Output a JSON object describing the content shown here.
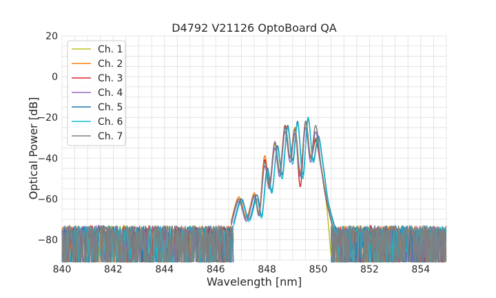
{
  "chart_data": {
    "type": "line",
    "title": "D4792 V21126 OptoBoard QA",
    "xlabel": "Wavelength [nm]",
    "ylabel": "Optical Power [dB]",
    "xlim": [
      840,
      855
    ],
    "ylim": [
      -90,
      20
    ],
    "xticks": [
      840,
      842,
      844,
      846,
      848,
      850,
      852,
      854
    ],
    "yticks": [
      20,
      0,
      -20,
      -40,
      -60,
      -80
    ],
    "xtick_labels": [
      "840",
      "842",
      "844",
      "846",
      "848",
      "850",
      "852",
      "854"
    ],
    "ytick_labels": [
      "20",
      "0",
      "−20",
      "−40",
      "−60",
      "−80"
    ],
    "grid": true,
    "legend_position": "top-left",
    "noise_floor_db": -75,
    "series": [
      {
        "name": "Ch. 1",
        "color": "#bcbd22",
        "x": [
          846.6,
          846.9,
          847.2,
          847.5,
          847.7,
          847.9,
          848.1,
          848.3,
          848.5,
          848.7,
          848.9,
          849.1,
          849.3,
          849.5,
          849.7,
          849.9,
          850.1,
          850.3,
          850.5
        ],
        "y": [
          -72,
          -60,
          -70,
          -58,
          -68,
          -42,
          -55,
          -33,
          -48,
          -25,
          -40,
          -26,
          -48,
          -23,
          -40,
          -32,
          -44,
          -60,
          -88
        ]
      },
      {
        "name": "Ch. 2",
        "color": "#ff7f0e",
        "x": [
          846.6,
          846.9,
          847.2,
          847.5,
          847.7,
          847.9,
          848.1,
          848.3,
          848.5,
          848.7,
          848.9,
          849.1,
          849.3,
          849.5,
          849.7,
          849.9,
          850.1,
          850.3,
          850.6
        ],
        "y": [
          -71,
          -59,
          -69,
          -57,
          -66,
          -39,
          -53,
          -32,
          -46,
          -24,
          -39,
          -25,
          -47,
          -22,
          -39,
          -30,
          -43,
          -58,
          -76
        ]
      },
      {
        "name": "Ch. 3",
        "color": "#d62728",
        "x": [
          846.6,
          846.9,
          847.2,
          847.5,
          847.7,
          847.9,
          848.1,
          848.3,
          848.5,
          848.7,
          848.9,
          849.1,
          849.3,
          849.5,
          849.7,
          849.9,
          850.1,
          850.3,
          850.6
        ],
        "y": [
          -72,
          -60,
          -70,
          -58,
          -67,
          -41,
          -53,
          -32,
          -47,
          -24,
          -40,
          -26,
          -54,
          -22,
          -40,
          -31,
          -44,
          -60,
          -76
        ]
      },
      {
        "name": "Ch. 4",
        "color": "#9467bd",
        "x": [
          846.6,
          846.9,
          847.2,
          847.5,
          847.7,
          847.9,
          848.1,
          848.3,
          848.5,
          848.7,
          848.9,
          849.1,
          849.3,
          849.5,
          849.7,
          849.9,
          850.1,
          850.3,
          850.6
        ],
        "y": [
          -73,
          -61,
          -71,
          -59,
          -68,
          -44,
          -55,
          -35,
          -49,
          -27,
          -42,
          -28,
          -49,
          -25,
          -42,
          -27,
          -44,
          -59,
          -76
        ]
      },
      {
        "name": "Ch. 5",
        "color": "#1f77b4",
        "x": [
          846.7,
          847.0,
          847.3,
          847.6,
          847.8,
          848.0,
          848.2,
          848.4,
          848.6,
          848.8,
          849.0,
          849.2,
          849.4,
          849.6,
          849.8,
          850.0,
          850.2,
          850.4,
          850.7
        ],
        "y": [
          -72,
          -60,
          -70,
          -58,
          -68,
          -45,
          -56,
          -34,
          -48,
          -24,
          -41,
          -22,
          -48,
          -21,
          -41,
          -29,
          -44,
          -62,
          -76
        ]
      },
      {
        "name": "Ch. 6",
        "color": "#17becf",
        "x": [
          846.7,
          847.0,
          847.3,
          847.6,
          847.8,
          848.0,
          848.2,
          848.4,
          848.6,
          848.8,
          849.0,
          849.2,
          849.4,
          849.6,
          849.8,
          850.0,
          850.2,
          850.4,
          850.7
        ],
        "y": [
          -73,
          -61,
          -71,
          -60,
          -69,
          -47,
          -57,
          -35,
          -50,
          -25,
          -43,
          -23,
          -50,
          -20,
          -42,
          -30,
          -45,
          -63,
          -77
        ]
      },
      {
        "name": "Ch. 7",
        "color": "#7f7f7f",
        "x": [
          846.6,
          846.9,
          847.2,
          847.5,
          847.7,
          847.9,
          848.1,
          848.3,
          848.5,
          848.7,
          848.9,
          849.1,
          849.3,
          849.5,
          849.7,
          849.9,
          850.1,
          850.3,
          850.6
        ],
        "y": [
          -72,
          -60,
          -70,
          -58,
          -67,
          -42,
          -54,
          -32,
          -47,
          -25,
          -40,
          -26,
          -48,
          -22,
          -40,
          -24,
          -43,
          -59,
          -76
        ]
      }
    ]
  }
}
